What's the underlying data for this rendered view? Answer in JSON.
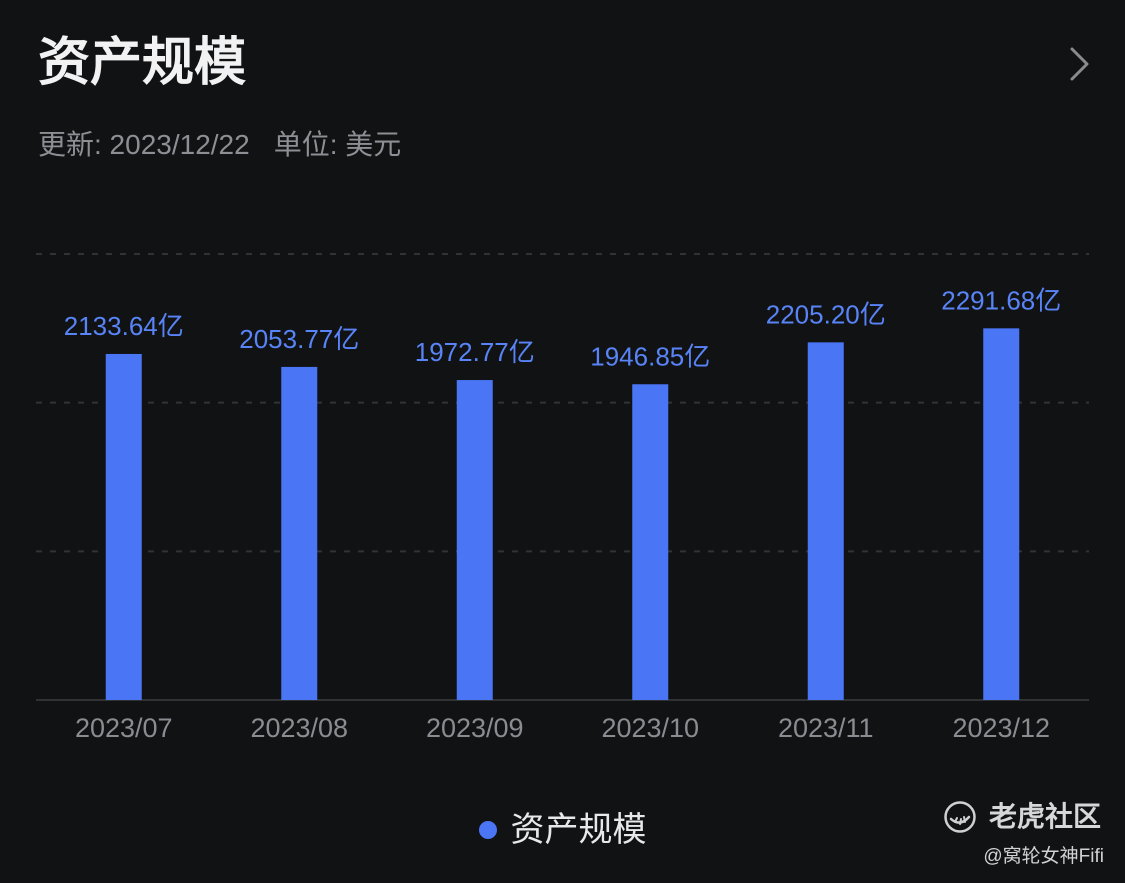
{
  "header": {
    "chevron_icon": "chevron-right-icon"
  },
  "chart_data": {
    "type": "bar",
    "title": "资产规模",
    "subtitle": {
      "updated": "更新: 2023/12/22",
      "unit": "单位: 美元"
    },
    "categories": [
      "2023/07",
      "2023/08",
      "2023/09",
      "2023/10",
      "2023/11",
      "2023/12"
    ],
    "series": [
      {
        "name": "资产规模",
        "color": "#4a76f6",
        "values": [
          2133.64,
          2053.77,
          1972.77,
          1946.85,
          2205.2,
          2291.68
        ],
        "data_labels": [
          "2133.64亿",
          "2053.77亿",
          "1972.77亿",
          "1946.85亿",
          "2205.20亿",
          "2291.68亿"
        ]
      }
    ],
    "ylim": [
      0,
      2750
    ],
    "grid": true,
    "legend": "bottom-center"
  },
  "watermark": {
    "logo_icon": "tiger-logo-icon",
    "brand": "老虎社区",
    "author": "@窝轮女神Fifi"
  }
}
